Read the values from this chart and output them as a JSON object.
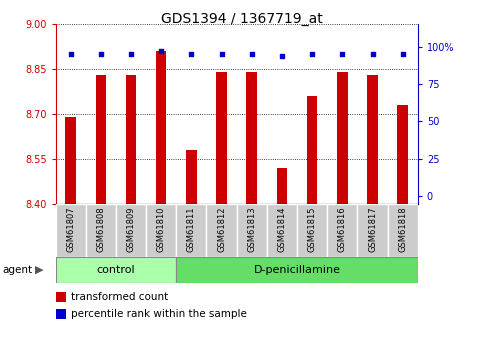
{
  "title": "GDS1394 / 1367719_at",
  "samples": [
    "GSM61807",
    "GSM61808",
    "GSM61809",
    "GSM61810",
    "GSM61811",
    "GSM61812",
    "GSM61813",
    "GSM61814",
    "GSM61815",
    "GSM61816",
    "GSM61817",
    "GSM61818"
  ],
  "transformed_counts": [
    8.69,
    8.83,
    8.83,
    8.91,
    8.58,
    8.84,
    8.84,
    8.52,
    8.76,
    8.84,
    8.83,
    8.73
  ],
  "percentile_ranks": [
    95,
    95,
    95,
    97,
    95,
    95,
    95,
    94,
    95,
    95,
    95,
    95
  ],
  "ymin": 8.4,
  "ymax": 9.0,
  "yticks": [
    8.4,
    8.55,
    8.7,
    8.85,
    9.0
  ],
  "right_yticks": [
    0,
    25,
    50,
    75,
    100
  ],
  "bar_color": "#cc0000",
  "dot_color": "#0000cc",
  "n_control": 4,
  "control_label": "control",
  "treatment_label": "D-penicillamine",
  "control_bg": "#aaffaa",
  "treatment_bg": "#66dd66",
  "tick_bg": "#cccccc",
  "agent_label": "agent",
  "legend_bar_label": "transformed count",
  "legend_dot_label": "percentile rank within the sample",
  "title_fontsize": 10,
  "tick_label_fontsize": 7,
  "legend_fontsize": 7.5
}
